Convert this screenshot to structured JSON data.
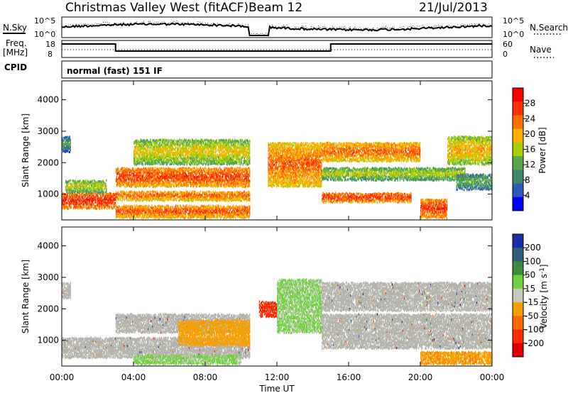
{
  "header": {
    "title": "Christmas Valley West (fitACF)",
    "beam": "Beam 12",
    "date": "21/Jul/2013"
  },
  "top_panels": {
    "nsky_label": "N.Sky",
    "nsearch_label": "N.Search",
    "noise_ticks_left": [
      "10^5",
      "10^0"
    ],
    "noise_ticks_right": [
      "10^5",
      "10^0"
    ],
    "freq_label": "Freq.",
    "freq_unit": "[MHz]",
    "freq_ticks": [
      "18",
      "8"
    ],
    "nave_label": "Nave",
    "nave_ticks": [
      "60",
      "0"
    ],
    "cpid_label": "CPID",
    "cpid_value": "normal (fast) 151 IF"
  },
  "colors": {
    "power_scale": [
      "#0000ff",
      "#2b5bb8",
      "#3d8a6a",
      "#58a84a",
      "#a8d000",
      "#ffb000",
      "#ff7000",
      "#ff3000",
      "#ff0000"
    ],
    "velocity_scale": [
      "#1a2ca8",
      "#2f5f7f",
      "#3b8b3f",
      "#6fd13f",
      "#c8c8c0",
      "#f5a000",
      "#ff6a00",
      "#ff2a00",
      "#e00000"
    ],
    "ground_scatter": "#b4b4ac"
  },
  "chart_data": [
    {
      "type": "heatmap",
      "name": "Power",
      "xlabel": "",
      "ylabel": "Slant Range [km]",
      "x_ticks": [
        "00:00",
        "04:00",
        "08:00",
        "12:00",
        "16:00",
        "20:00",
        "00:00"
      ],
      "y_ticks": [
        "1000",
        "2000",
        "3000",
        "4000"
      ],
      "ylim": [
        180,
        4600
      ],
      "xlim_hours": [
        0,
        24
      ],
      "colorbar_label": "Power [dB]",
      "colorbar_ticks": [
        "4",
        "8",
        "12",
        "16",
        "20",
        "24",
        "28"
      ],
      "colorbar_range": [
        0,
        30
      ],
      "bands": [
        {
          "start": 0.0,
          "end": 3.0,
          "range_start": 600,
          "range_end": 1100,
          "level": 28
        },
        {
          "start": 0.2,
          "end": 2.5,
          "range_start": 1100,
          "range_end": 1500,
          "level": 16
        },
        {
          "start": 0.0,
          "end": 0.5,
          "range_start": 2400,
          "range_end": 2900,
          "level": 10
        },
        {
          "start": 3.0,
          "end": 10.5,
          "range_start": 1300,
          "range_end": 1900,
          "level": 26
        },
        {
          "start": 3.0,
          "end": 10.5,
          "range_start": 850,
          "range_end": 1150,
          "level": 24
        },
        {
          "start": 3.0,
          "end": 10.5,
          "range_start": 300,
          "range_end": 700,
          "level": 25
        },
        {
          "start": 4.0,
          "end": 10.5,
          "range_start": 2000,
          "range_end": 2800,
          "level": 18
        },
        {
          "start": 11.5,
          "end": 14.5,
          "range_start": 1300,
          "range_end": 2700,
          "level": 24
        },
        {
          "start": 14.5,
          "end": 19.5,
          "range_start": 800,
          "range_end": 1100,
          "level": 27
        },
        {
          "start": 14.5,
          "end": 20.0,
          "range_start": 2100,
          "range_end": 2700,
          "level": 24
        },
        {
          "start": 14.5,
          "end": 22.5,
          "range_start": 1500,
          "range_end": 1900,
          "level": 16
        },
        {
          "start": 20.0,
          "end": 21.5,
          "range_start": 300,
          "range_end": 900,
          "level": 27
        },
        {
          "start": 21.5,
          "end": 24.0,
          "range_start": 2000,
          "range_end": 2900,
          "level": 20
        },
        {
          "start": 22.0,
          "end": 24.0,
          "range_start": 1200,
          "range_end": 1700,
          "level": 12
        }
      ]
    },
    {
      "type": "heatmap",
      "name": "Velocity",
      "xlabel": "Time UT",
      "ylabel": "Slant Range [km]",
      "x_ticks": [
        "00:00",
        "04:00",
        "08:00",
        "12:00",
        "16:00",
        "20:00",
        "00:00"
      ],
      "y_ticks": [
        "1000",
        "2000",
        "3000",
        "4000"
      ],
      "ylim": [
        180,
        4600
      ],
      "xlim_hours": [
        0,
        24
      ],
      "colorbar_label": "Velocity [m s-1]",
      "colorbar_ticks": [
        "200",
        "100",
        "50",
        "15",
        "-15",
        "-50",
        "-100",
        "-200"
      ],
      "colorbar_range": [
        -250,
        250
      ],
      "bands": [
        {
          "start": 0.0,
          "end": 10.5,
          "range_start": 500,
          "range_end": 1150,
          "kind": "ground"
        },
        {
          "start": 3.0,
          "end": 10.5,
          "range_start": 1300,
          "range_end": 1900,
          "kind": "ground"
        },
        {
          "start": 0.0,
          "end": 0.5,
          "range_start": 2400,
          "range_end": 2900,
          "kind": "ground"
        },
        {
          "start": 6.5,
          "end": 10.5,
          "range_start": 900,
          "range_end": 1700,
          "value": -60
        },
        {
          "start": 4.0,
          "end": 10.0,
          "range_start": 300,
          "range_end": 600,
          "value": 40
        },
        {
          "start": 11.0,
          "end": 12.0,
          "range_start": 1800,
          "range_end": 2300,
          "value": -200
        },
        {
          "start": 12.0,
          "end": 14.5,
          "range_start": 1300,
          "range_end": 3000,
          "value": 40
        },
        {
          "start": 14.5,
          "end": 24.0,
          "range_start": 2000,
          "range_end": 2900,
          "kind": "ground"
        },
        {
          "start": 14.5,
          "end": 24.0,
          "range_start": 800,
          "range_end": 1900,
          "kind": "ground"
        },
        {
          "start": 20.0,
          "end": 24.0,
          "range_start": 300,
          "range_end": 700,
          "value": -80
        }
      ]
    }
  ]
}
